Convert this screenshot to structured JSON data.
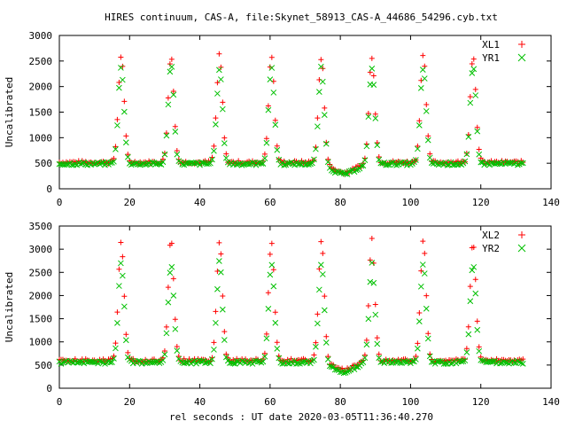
{
  "title": "HIRES continuum, CAS-A, file:Skynet_58913_CAS-A_44686_54296.cyb.txt",
  "xlabel": "rel seconds : UT date 2020-03-05T11:36:40.270",
  "colors": {
    "red": "#ff0000",
    "green": "#00c000"
  },
  "chart_data": [
    {
      "type": "scatter",
      "ylabel": "Uncalibrated",
      "xlim": [
        0,
        140
      ],
      "ylim": [
        0,
        3000
      ],
      "xticks": [
        0,
        20,
        40,
        60,
        80,
        100,
        120,
        140
      ],
      "yticks": [
        0,
        500,
        1000,
        1500,
        2000,
        2500,
        3000
      ],
      "legend_position": "top-right",
      "series": [
        {
          "name": "XL1",
          "marker": "plus",
          "color": "#ff0000",
          "baseline": 520,
          "peak": 2620,
          "dip": 320
        },
        {
          "name": "YR1",
          "marker": "cross",
          "color": "#00c000",
          "baseline": 490,
          "peak": 2380,
          "dip": 290
        }
      ],
      "peak_centers": [
        17.6,
        31.8,
        45.6,
        60.4,
        74.6,
        89.0,
        103.6,
        117.8
      ],
      "dip_center": 81.0,
      "x_range": [
        0,
        132
      ]
    },
    {
      "type": "scatter",
      "ylabel": "Uncalibrated",
      "xlim": [
        0,
        140
      ],
      "ylim": [
        0,
        3500
      ],
      "xticks": [
        0,
        20,
        40,
        60,
        80,
        100,
        120,
        140
      ],
      "yticks": [
        0,
        500,
        1000,
        1500,
        2000,
        2500,
        3000,
        3500
      ],
      "legend_position": "top-right",
      "series": [
        {
          "name": "XL2",
          "marker": "plus",
          "color": "#ff0000",
          "baseline": 600,
          "peak": 3200,
          "dip": 400
        },
        {
          "name": "YR2",
          "marker": "cross",
          "color": "#00c000",
          "baseline": 560,
          "peak": 2700,
          "dip": 360
        }
      ],
      "peak_centers": [
        17.6,
        31.8,
        45.6,
        60.4,
        74.6,
        89.0,
        103.6,
        117.8
      ],
      "dip_center": 81.0,
      "x_range": [
        0,
        132
      ]
    }
  ]
}
